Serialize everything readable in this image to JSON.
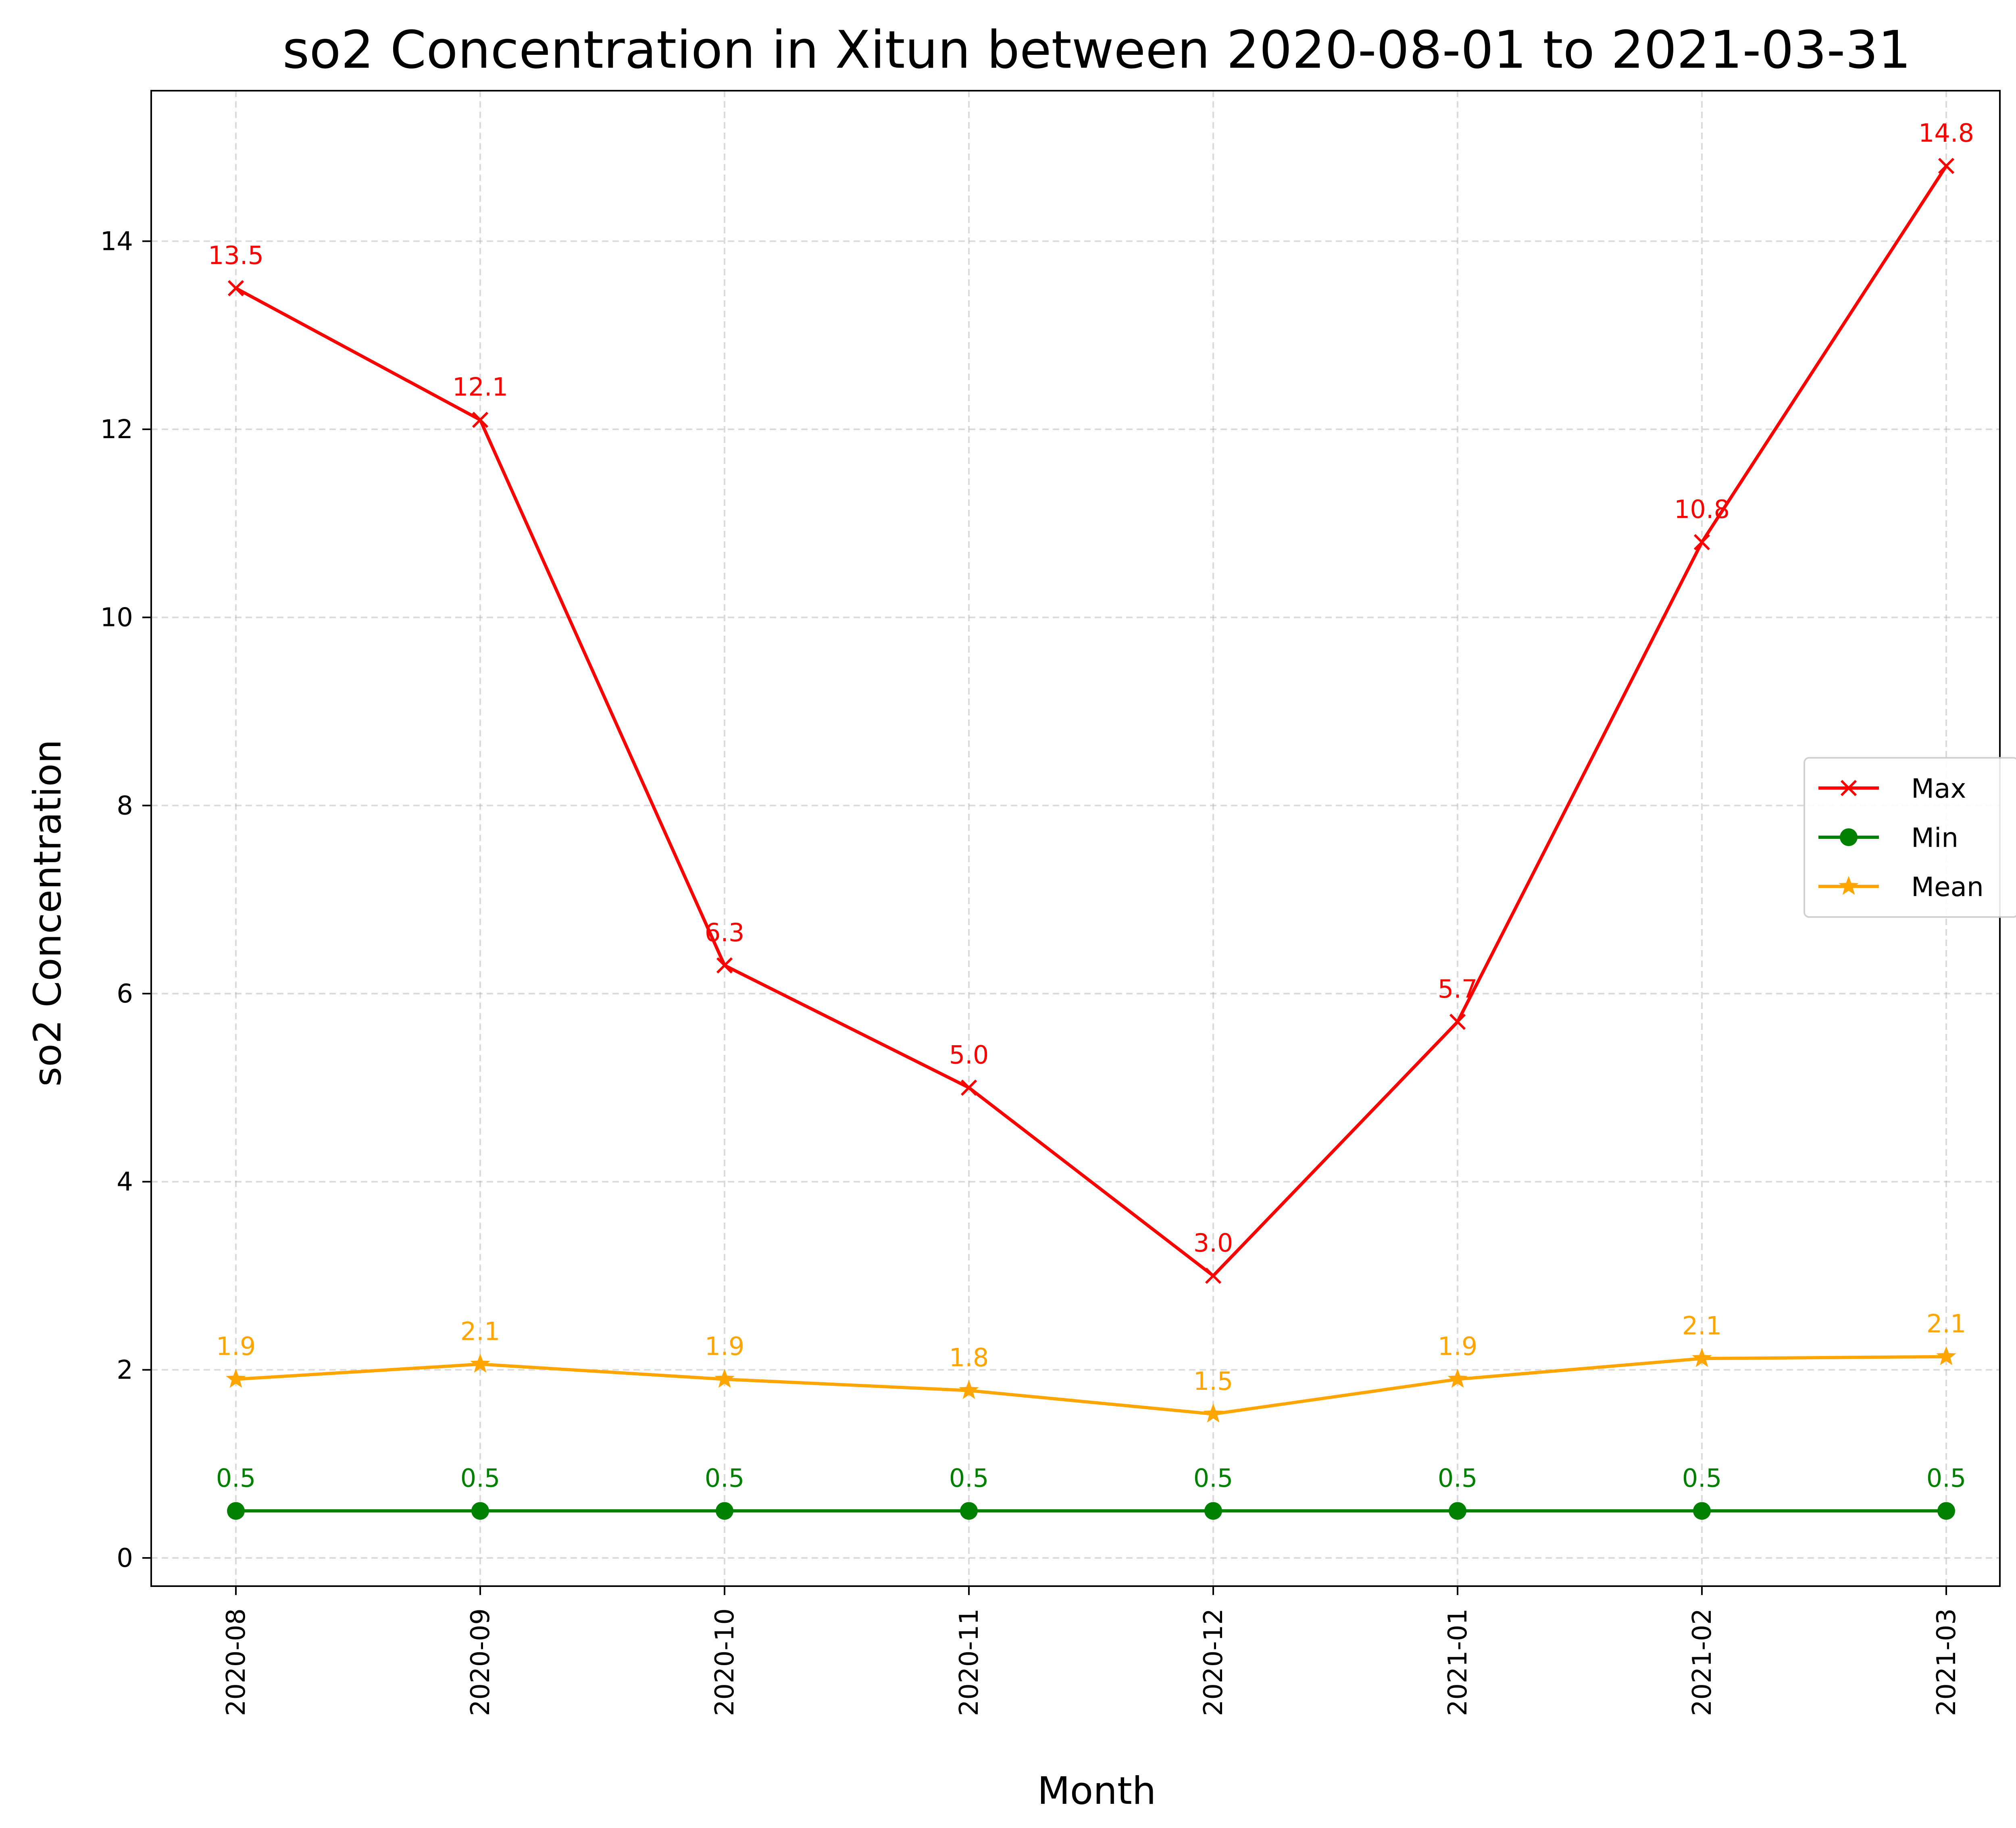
{
  "chart_data": {
    "type": "line",
    "title": "so2 Concentration in Xitun between 2020-08-01 to 2021-03-31",
    "xlabel": "Month",
    "ylabel": "so2 Concentration",
    "categories": [
      "2020-08",
      "2020-09",
      "2020-10",
      "2020-11",
      "2020-12",
      "2021-01",
      "2021-02",
      "2021-03"
    ],
    "ylim": [
      -0.3,
      15.6
    ],
    "yticks": [
      0,
      2,
      4,
      6,
      8,
      10,
      12,
      14
    ],
    "grid": true,
    "legend_position": "center-right",
    "series": [
      {
        "name": "Max",
        "color": "#ff0000",
        "marker": "x",
        "values": [
          13.5,
          12.1,
          6.3,
          5.0,
          3.0,
          5.7,
          10.8,
          14.8
        ],
        "labels": [
          "13.5",
          "12.1",
          "6.3",
          "5.0",
          "3.0",
          "5.7",
          "10.8",
          "14.8"
        ]
      },
      {
        "name": "Min",
        "color": "#008000",
        "marker": "circle",
        "values": [
          0.5,
          0.5,
          0.5,
          0.5,
          0.5,
          0.5,
          0.5,
          0.5
        ],
        "labels": [
          "0.5",
          "0.5",
          "0.5",
          "0.5",
          "0.5",
          "0.5",
          "0.5",
          "0.5"
        ]
      },
      {
        "name": "Mean",
        "color": "#ffa500",
        "marker": "star",
        "values": [
          1.9,
          2.06,
          1.9,
          1.78,
          1.53,
          1.9,
          2.12,
          2.14
        ],
        "labels": [
          "1.9",
          "2.1",
          "1.9",
          "1.8",
          "1.5",
          "1.9",
          "2.1",
          "2.1"
        ]
      }
    ]
  }
}
